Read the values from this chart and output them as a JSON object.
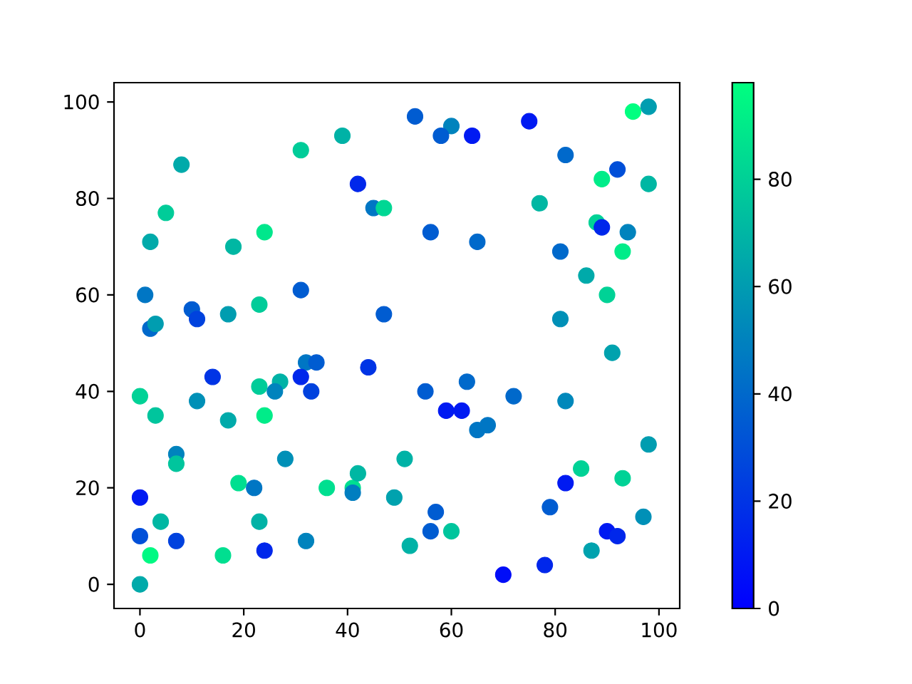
{
  "chart_data": {
    "type": "scatter",
    "x": [
      8,
      5,
      2,
      1,
      2,
      3,
      10,
      11,
      17,
      18,
      23,
      24,
      31,
      39,
      42,
      45,
      47,
      31,
      47,
      53,
      60,
      58,
      64,
      75,
      82,
      95,
      98,
      92,
      89,
      98,
      77,
      88,
      89,
      94,
      56,
      65,
      81,
      93,
      86,
      90,
      81,
      91,
      0,
      3,
      7,
      7,
      0,
      4,
      0,
      7,
      2,
      0,
      14,
      11,
      17,
      23,
      27,
      26,
      24,
      32,
      34,
      31,
      33,
      44,
      28,
      19,
      22,
      23,
      16,
      24,
      32,
      36,
      41,
      41,
      42,
      49,
      55,
      63,
      59,
      62,
      65,
      67,
      72,
      82,
      98,
      51,
      85,
      93,
      82,
      57,
      79,
      56,
      60,
      52,
      90,
      92,
      97,
      87,
      70,
      78
    ],
    "values": [
      87,
      77,
      71,
      60,
      53,
      54,
      57,
      55,
      56,
      70,
      58,
      73,
      90,
      93,
      83,
      78,
      78,
      61,
      56,
      97,
      95,
      93,
      93,
      96,
      89,
      98,
      99,
      86,
      84,
      83,
      79,
      75,
      74,
      73,
      73,
      71,
      69,
      69,
      64,
      60,
      55,
      48,
      39,
      35,
      27,
      25,
      18,
      13,
      10,
      9,
      6,
      0,
      43,
      38,
      34,
      41,
      42,
      40,
      35,
      46,
      46,
      43,
      40,
      45,
      26,
      21,
      20,
      13,
      6,
      7,
      9,
      20,
      20,
      19,
      23,
      18,
      40,
      42,
      36,
      36,
      32,
      33,
      39,
      38,
      29,
      26,
      24,
      22,
      21,
      15,
      16,
      11,
      11,
      8,
      11,
      10,
      14,
      7,
      2,
      4
    ],
    "cvalues": [
      65,
      78,
      65,
      45,
      40,
      60,
      35,
      25,
      60,
      70,
      78,
      88,
      78,
      68,
      15,
      45,
      82,
      35,
      35,
      35,
      50,
      35,
      10,
      10,
      40,
      98,
      60,
      30,
      90,
      70,
      70,
      80,
      15,
      50,
      35,
      40,
      40,
      90,
      65,
      80,
      55,
      62,
      80,
      75,
      50,
      75,
      10,
      70,
      30,
      25,
      95,
      65,
      20,
      55,
      65,
      78,
      68,
      50,
      90,
      45,
      35,
      15,
      25,
      20,
      55,
      85,
      45,
      68,
      85,
      15,
      50,
      85,
      85,
      48,
      70,
      62,
      35,
      40,
      10,
      10,
      45,
      45,
      40,
      52,
      60,
      68,
      80,
      80,
      10,
      35,
      35,
      35,
      75,
      68,
      10,
      15,
      55,
      62,
      5,
      15
    ],
    "xlim": [
      -5,
      104
    ],
    "ylim": [
      -5,
      104
    ],
    "xticks": [
      0,
      20,
      40,
      60,
      80,
      100
    ],
    "yticks": [
      0,
      20,
      40,
      60,
      80,
      100
    ],
    "clim": [
      0,
      98
    ],
    "cticks": [
      0,
      20,
      40,
      60,
      80
    ],
    "marker": "circle",
    "grid": false
  }
}
